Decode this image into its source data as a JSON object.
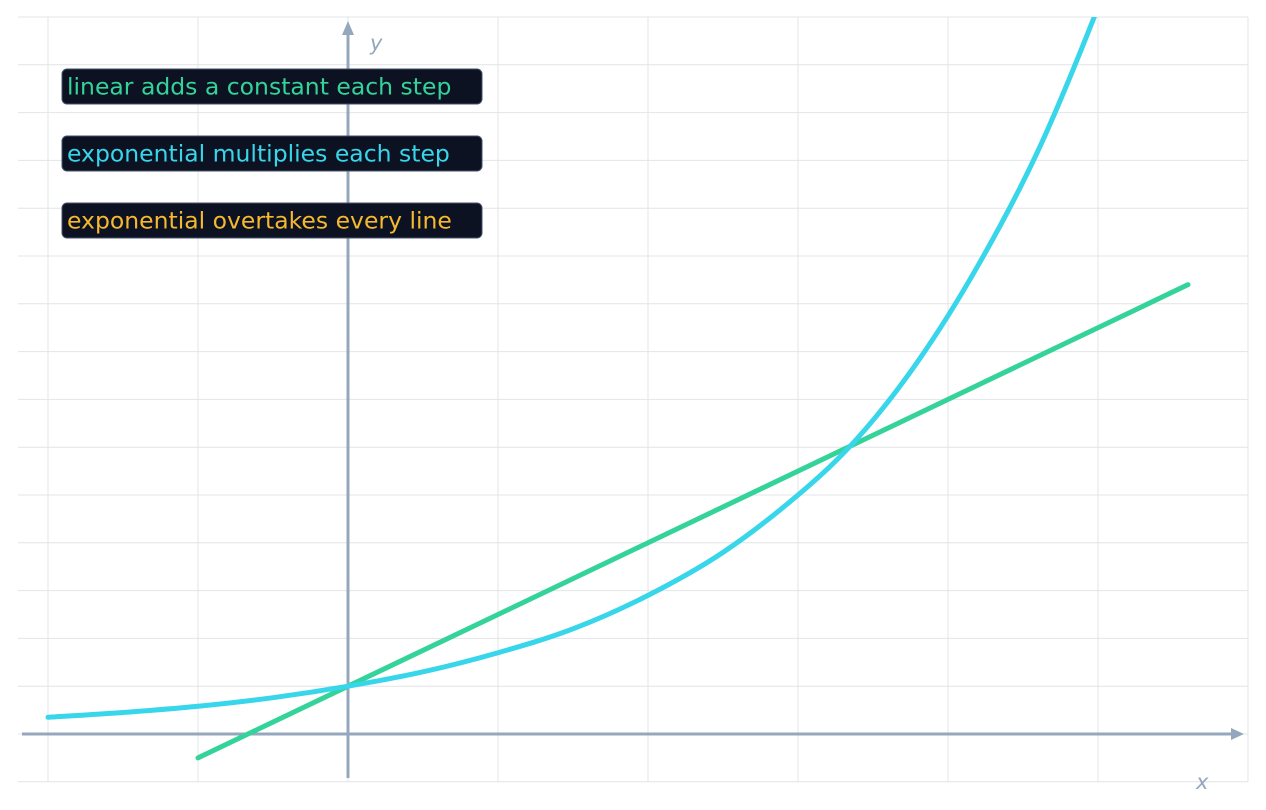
{
  "chart_data": {
    "type": "line",
    "title": "",
    "xlabel": "x",
    "ylabel": "y",
    "xlim": [
      -2,
      6
    ],
    "ylim": [
      -1,
      15
    ],
    "grid": true,
    "x_step": 1,
    "y_step": 1,
    "series": [
      {
        "name": "linear",
        "color": "#34d399",
        "x": [
          -1,
          5.6
        ],
        "y": [
          -0.5,
          9.4
        ]
      },
      {
        "name": "exponential",
        "color": "#38d6ea",
        "x": [
          -2,
          -1.5,
          -1,
          -0.5,
          0,
          0.5,
          1,
          1.5,
          2,
          2.5,
          3,
          3.4,
          3.8,
          4.2,
          4.6,
          5,
          5.2
        ],
        "y": [
          0.35,
          0.45,
          0.58,
          0.76,
          1.0,
          1.3,
          1.7,
          2.2,
          2.9,
          3.8,
          5.0,
          6.2,
          7.8,
          9.8,
          12.2,
          15.2,
          17.0
        ]
      }
    ],
    "annotations": [
      {
        "text": "linear adds a constant each step",
        "color": "#34d399"
      },
      {
        "text": "exponential multiplies each step",
        "color": "#38d6ea"
      },
      {
        "text": "exponential overtakes every line",
        "color": "#f5b82e"
      }
    ]
  }
}
